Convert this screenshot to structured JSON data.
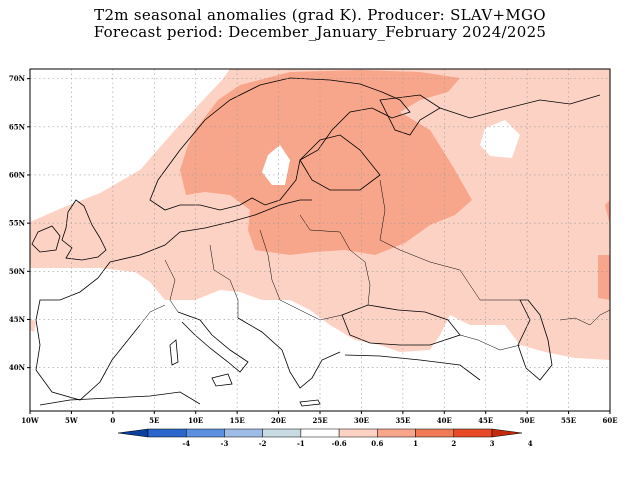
{
  "title": {
    "line1": "T2m seasonal anomalies (grad K). Producer: SLAV+MGO",
    "line2": "Forecast period: December_January_February 2024/2025"
  },
  "map": {
    "lat_labels": [
      "70N",
      "65N",
      "60N",
      "55N",
      "50N",
      "45N",
      "40N"
    ],
    "lat_values": [
      70,
      65,
      60,
      55,
      50,
      45,
      40
    ],
    "lon_labels": [
      "10W",
      "5W",
      "0",
      "5E",
      "10E",
      "15E",
      "20E",
      "25E",
      "30E",
      "35E",
      "40E",
      "45E",
      "50E",
      "55E",
      "60E"
    ],
    "lon_values": [
      -10,
      -5,
      0,
      5,
      10,
      15,
      20,
      25,
      30,
      35,
      40,
      45,
      50,
      55,
      60
    ],
    "lon_range": [
      -10,
      60
    ],
    "lat_range": [
      35.5,
      71
    ],
    "grid": "dotted"
  },
  "colorbar": {
    "labels": [
      "-4",
      "-3",
      "-2",
      "-1",
      "-0.6",
      "0.6",
      "1",
      "2",
      "3",
      "4"
    ],
    "segments": [
      {
        "color": "#0b3fa0"
      },
      {
        "color": "#2b66cc"
      },
      {
        "color": "#5b8fe0"
      },
      {
        "color": "#9ebde6"
      },
      {
        "color": "#c8dbe3"
      },
      {
        "color": "#ffffff"
      },
      {
        "color": "#fcd2c4"
      },
      {
        "color": "#f8a68b"
      },
      {
        "color": "#f07a55"
      },
      {
        "color": "#e64b25"
      },
      {
        "color": "#c42a0c"
      }
    ]
  },
  "colors": {
    "anomaly_0_6_to_1": "#fcd2c4",
    "anomaly_1_to_2": "#f8a68b"
  }
}
